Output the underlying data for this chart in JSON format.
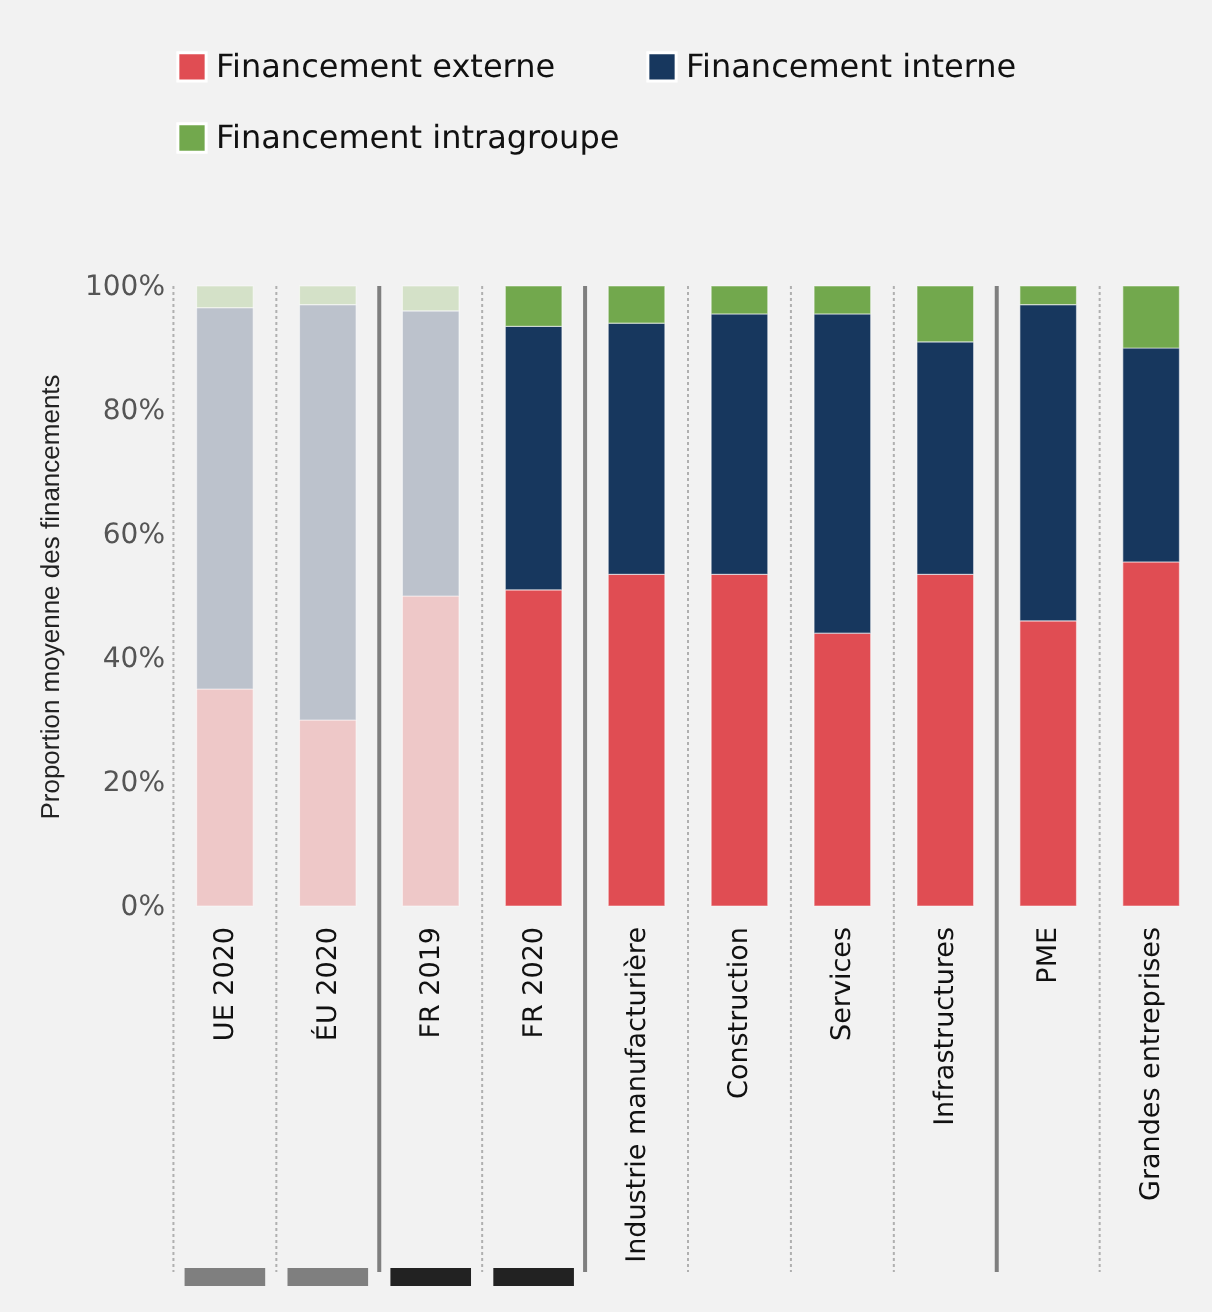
{
  "chart_data": {
    "type": "bar",
    "stacked": true,
    "ylabel": "Proportion moyenne des financements",
    "categories": [
      "UE 2020",
      "ÉU 2020",
      "FR 2019",
      "FR 2020",
      "Industrie manufacturière",
      "Construction",
      "Services",
      "Infrastructures",
      "PME",
      "Grandes entreprises"
    ],
    "series": [
      {
        "name": "Financement externe",
        "color": "#e04d53",
        "colors": [
          "#eec8c8",
          "#eec8c8",
          "#eec8c8",
          "#e04d53",
          "#e04d53",
          "#e04d53",
          "#e04d53",
          "#e04d53",
          "#e04d53",
          "#e04d53"
        ],
        "values": [
          35,
          30,
          50,
          51,
          53.5,
          53.5,
          44,
          53.5,
          46,
          55.5
        ]
      },
      {
        "name": "Financement interne",
        "color": "#17375e",
        "colors": [
          "#bcc2cc",
          "#bcc2cc",
          "#bcc2cc",
          "#17375e",
          "#17375e",
          "#17375e",
          "#17375e",
          "#17375e",
          "#17375e",
          "#17375e"
        ],
        "values": [
          61.5,
          67,
          46,
          42.5,
          40.5,
          42,
          51.5,
          37.5,
          51,
          34.5
        ]
      },
      {
        "name": "Financement intragroupe",
        "color": "#72a84d",
        "colors": [
          "#d4e1c8",
          "#d4e1c8",
          "#d4e1c8",
          "#72a84d",
          "#72a84d",
          "#72a84d",
          "#72a84d",
          "#72a84d",
          "#72a84d",
          "#72a84d"
        ],
        "values": [
          3.5,
          3,
          4,
          6.5,
          6,
          4.5,
          4.5,
          9,
          3,
          10
        ]
      }
    ],
    "ylim": [
      0,
      100
    ],
    "yticks": [
      {
        "value": 0,
        "label": "0%"
      },
      {
        "value": 20,
        "label": "20%"
      },
      {
        "value": 40,
        "label": "40%"
      },
      {
        "value": 60,
        "label": "60%"
      },
      {
        "value": 80,
        "label": "80%"
      },
      {
        "value": 100,
        "label": "100%"
      }
    ],
    "grid": false,
    "legend": "top"
  }
}
